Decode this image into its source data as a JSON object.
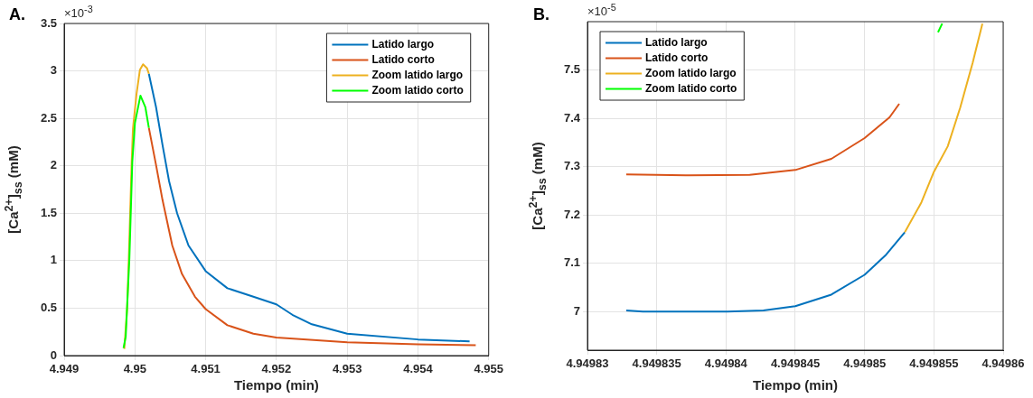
{
  "chart_data": [
    {
      "type": "line",
      "title": "A.",
      "xlabel": "Tiempo (min)",
      "ylabel": "[Ca$^{2+}$]$_{ss}$ (mM)",
      "annotations": [
        "×10$^{-3}$"
      ],
      "xlim": [
        4.949,
        4.955
      ],
      "xticks": [
        4.949,
        4.95,
        4.951,
        4.952,
        4.953,
        4.954,
        4.955
      ],
      "ylim": [
        0,
        3.5
      ],
      "yticks": [
        0,
        0.5,
        1,
        1.5,
        2,
        2.5,
        3,
        3.5
      ],
      "grid": true,
      "legend": "top right",
      "series": [
        {
          "name": "Latido largo",
          "color": "#0072bd",
          "x": [
            4.950197,
            4.950298,
            4.95039,
            4.950482,
            4.950596,
            4.950757,
            4.951,
            4.951307,
            4.951674,
            4.952,
            4.952225,
            4.9525,
            4.953,
            4.954,
            4.95473
          ],
          "values": [
            2.97,
            2.62,
            2.22,
            1.84,
            1.5,
            1.16,
            0.89,
            0.71,
            0.62,
            0.54,
            0.43,
            0.33,
            0.23,
            0.17,
            0.15
          ]
        },
        {
          "name": "Latido corto",
          "color": "#d95319",
          "x": [
            4.950197,
            4.950298,
            4.95039,
            4.950528,
            4.950665,
            4.950849,
            4.951,
            4.951307,
            4.951674,
            4.952,
            4.953,
            4.954,
            4.954817
          ],
          "values": [
            2.4,
            2.01,
            1.64,
            1.16,
            0.86,
            0.62,
            0.49,
            0.32,
            0.23,
            0.19,
            0.14,
            0.12,
            0.11
          ]
        },
        {
          "name": "Zoom latido largo",
          "color": "#edb120",
          "x": [
            4.94985,
            4.94989,
            4.949914,
            4.949954,
            4.949972,
            4.950023,
            4.95007,
            4.950115,
            4.95017,
            4.950197
          ],
          "values": [
            0.07,
            0.5,
            1.03,
            2.04,
            2.39,
            2.76,
            3.01,
            3.07,
            3.03,
            2.97
          ]
        },
        {
          "name": "Zoom latido corto",
          "color": "#00ff00",
          "x": [
            4.949839,
            4.94987,
            4.949922,
            4.949963,
            4.95,
            4.950078,
            4.950147,
            4.950197
          ],
          "values": [
            0.08,
            0.2,
            1.03,
            2.04,
            2.45,
            2.74,
            2.62,
            2.4
          ]
        }
      ]
    },
    {
      "type": "line",
      "title": "B.",
      "xlabel": "Tiempo (min)",
      "ylabel": "[Ca$^{2+}$]$_{ss}$ (mM)",
      "annotations": [
        "×10$^{-5}$"
      ],
      "xlim": [
        4.94983,
        4.94986
      ],
      "xticks": [
        4.94983,
        4.949835,
        4.94984,
        4.949845,
        4.94985,
        4.949855,
        4.94986
      ],
      "ylim": [
        6.92,
        7.6
      ],
      "yticks": [
        7,
        7.1,
        7.2,
        7.3,
        7.4,
        7.5
      ],
      "grid": true,
      "legend": "top left",
      "series": [
        {
          "name": "Latido largo",
          "color": "#0072bd",
          "x": [
            4.9498328,
            4.949834,
            4.9498401,
            4.9498427,
            4.949845,
            4.9498476,
            4.94985,
            4.9498515,
            4.9498529
          ],
          "values": [
            7.002,
            7.0,
            7.0,
            7.002,
            7.011,
            7.035,
            7.076,
            7.116,
            7.164
          ]
        },
        {
          "name": "Latido corto",
          "color": "#d95319",
          "x": [
            4.9498328,
            4.9498371,
            4.9498417,
            4.949845,
            4.9498476,
            4.94985,
            4.9498518,
            4.9498525
          ],
          "values": [
            7.284,
            7.282,
            7.283,
            7.293,
            7.316,
            7.359,
            7.402,
            7.43
          ]
        },
        {
          "name": "Zoom latido largo",
          "color": "#edb120",
          "x": [
            4.9498529,
            4.9498541,
            4.949855,
            4.949856,
            4.9498569,
            4.9498578,
            4.9498585
          ],
          "values": [
            7.164,
            7.226,
            7.289,
            7.342,
            7.422,
            7.515,
            7.596
          ]
        },
        {
          "name": "Zoom latido corto",
          "color": "#00ff00",
          "x": [
            4.9498553,
            4.9498556
          ],
          "values": [
            7.578,
            7.596
          ]
        }
      ]
    }
  ]
}
